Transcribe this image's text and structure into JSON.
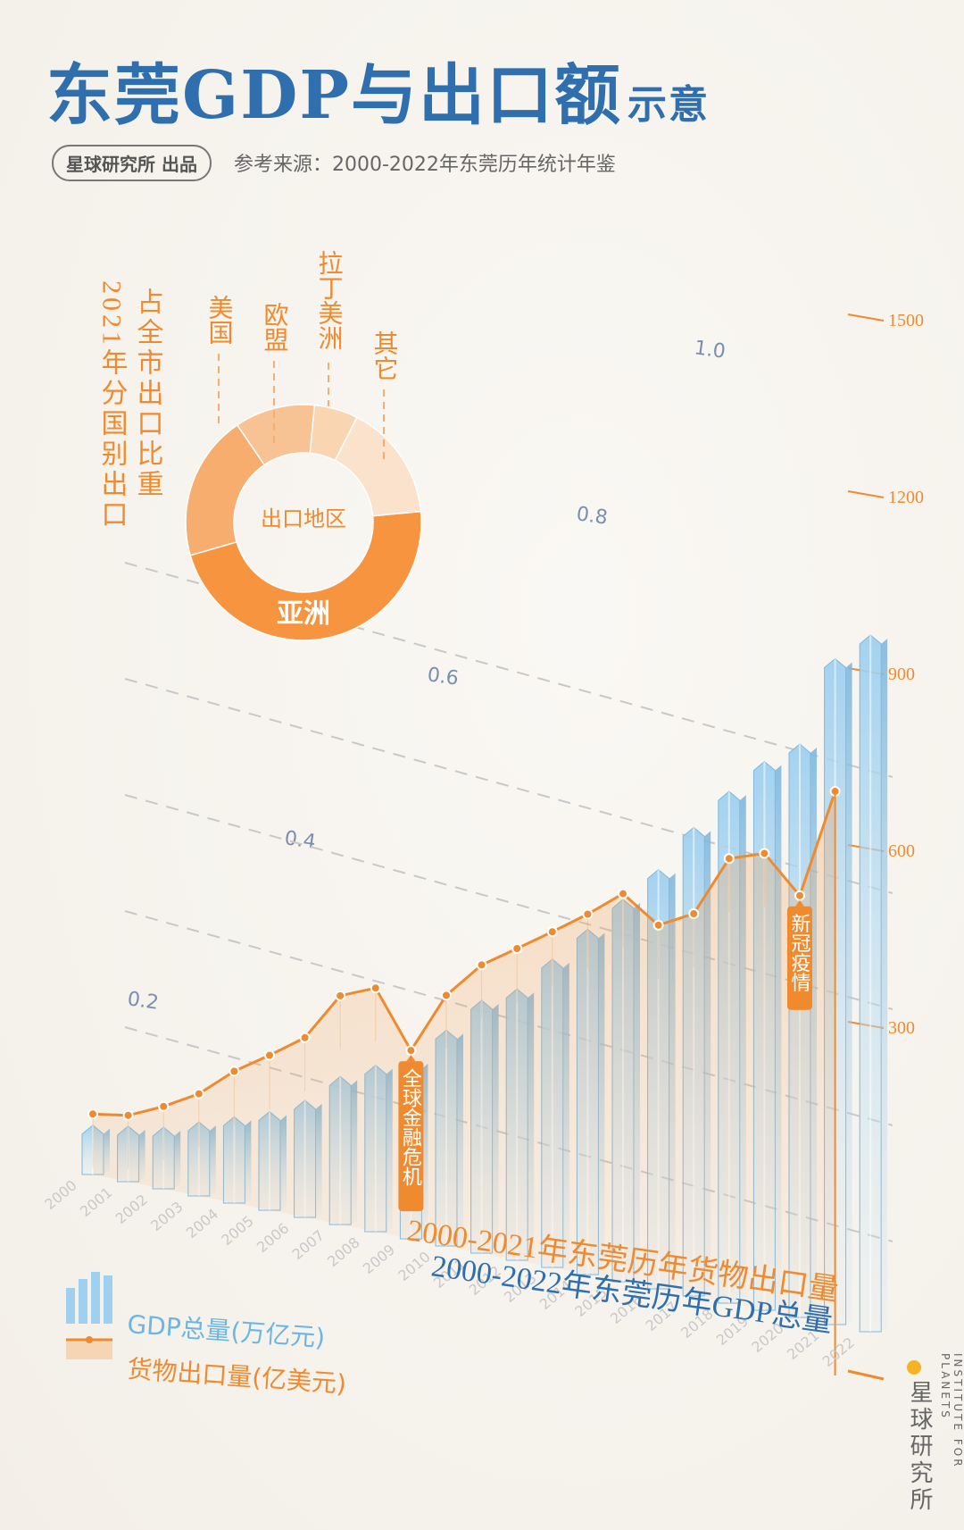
{
  "header": {
    "title": "东莞GDP与出口额",
    "title_suffix": "示意",
    "publisher": "星球研究所 出品",
    "source": "参考来源：2000-2022年东莞历年统计年鉴"
  },
  "legend": {
    "gdp": "GDP总量(万亿元)",
    "export": "货物出口量(亿美元)"
  },
  "brand": {
    "cn": "星球研究所",
    "en": "INSTITUTE FOR PLANETS"
  },
  "colors": {
    "gdp": "#8cc6e8",
    "gdp_dark": "#2f6fae",
    "export": "#f08a2e",
    "text": "#555555"
  },
  "chart_data": [
    {
      "type": "bar",
      "title": "2000-2022年东莞历年GDP总量",
      "ylabel": "GDP总量(万亿元)",
      "ylim": [
        0,
        1.1
      ],
      "yticks": [
        "0.2",
        "0.4",
        "0.6",
        "0.8",
        "1.0"
      ],
      "ytick_values": [
        0.2,
        0.4,
        0.6,
        0.8,
        1.0
      ],
      "categories": [
        "2000",
        "2001",
        "2002",
        "2003",
        "2004",
        "2005",
        "2006",
        "2007",
        "2008",
        "2009",
        "2010",
        "2011",
        "2012",
        "2013",
        "2014",
        "2015",
        "2016",
        "2017",
        "2018",
        "2019",
        "2020",
        "2021",
        "2022"
      ],
      "values": [
        0.08,
        0.09,
        0.1,
        0.12,
        0.14,
        0.16,
        0.19,
        0.24,
        0.27,
        0.29,
        0.35,
        0.41,
        0.44,
        0.5,
        0.56,
        0.62,
        0.68,
        0.76,
        0.83,
        0.89,
        0.93,
        1.08,
        1.13
      ]
    },
    {
      "type": "line",
      "title": "2000-2021年东莞历年货物出口量",
      "ylabel": "货物出口量(亿美元)",
      "ylim": [
        0,
        1700
      ],
      "yticks": [
        "300",
        "600",
        "900",
        "1200",
        "1500"
      ],
      "ytick_values": [
        300,
        600,
        900,
        1200,
        1500
      ],
      "categories": [
        "2000",
        "2001",
        "2002",
        "2003",
        "2004",
        "2005",
        "2006",
        "2007",
        "2008",
        "2009",
        "2010",
        "2011",
        "2012",
        "2013",
        "2014",
        "2015",
        "2016",
        "2017",
        "2018",
        "2019",
        "2020",
        "2021"
      ],
      "values": [
        99,
        113,
        152,
        200,
        272,
        328,
        388,
        507,
        543,
        409,
        560,
        651,
        708,
        766,
        826,
        893,
        834,
        879,
        1030,
        1060,
        975,
        1245
      ],
      "annotations": [
        {
          "x": "2009",
          "text": "全球金融危机"
        },
        {
          "x": "2020",
          "text": "新冠疫情"
        }
      ]
    },
    {
      "type": "pie",
      "title": "占全市出口比重",
      "subtitle": "2021年分国别出口",
      "center_label": "出口地区",
      "labels": [
        "亚洲",
        "美国",
        "欧盟",
        "拉丁美洲",
        "其它"
      ],
      "values": [
        47,
        20,
        11,
        6,
        16
      ]
    }
  ]
}
